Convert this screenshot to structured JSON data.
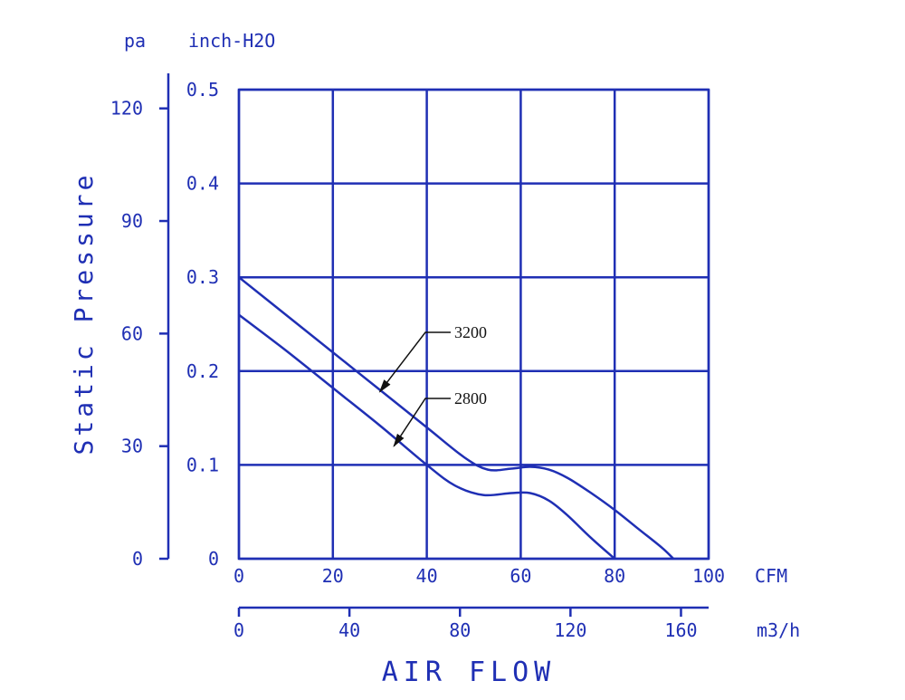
{
  "chart_data": {
    "type": "line",
    "color": "#1f2fb4",
    "x_label": "AIR FLOW",
    "y_label": "Static Pressure",
    "x_primary": {
      "unit": "CFM",
      "ticks": [
        "0",
        "20",
        "40",
        "60",
        "80",
        "100"
      ],
      "range": [
        0,
        100
      ]
    },
    "x_secondary": {
      "unit": "m3/h",
      "ticks": [
        "0",
        "40",
        "80",
        "120",
        "160"
      ],
      "range": [
        0,
        170
      ]
    },
    "y_primary": {
      "unit": "inch-H2O",
      "ticks": [
        "0",
        "0.1",
        "0.2",
        "0.3",
        "0.4",
        "0.5"
      ],
      "range": [
        0,
        0.5
      ]
    },
    "y_secondary": {
      "unit": "pa",
      "ticks": [
        "0",
        "30",
        "60",
        "90",
        "120"
      ],
      "range": [
        0,
        125
      ]
    },
    "grid": true,
    "series": [
      {
        "name": "3200",
        "x": [
          0,
          10,
          20,
          30,
          40,
          48,
          53,
          58,
          62,
          66,
          70,
          75,
          80,
          85,
          90,
          92.5
        ],
        "y": [
          0.3,
          0.26,
          0.22,
          0.18,
          0.14,
          0.108,
          0.095,
          0.096,
          0.098,
          0.095,
          0.086,
          0.07,
          0.052,
          0.032,
          0.012,
          0
        ]
      },
      {
        "name": "2800",
        "x": [
          0,
          10,
          20,
          30,
          40,
          46,
          52,
          58,
          62,
          66,
          70,
          75,
          80
        ],
        "y": [
          0.26,
          0.222,
          0.182,
          0.142,
          0.1,
          0.078,
          0.068,
          0.07,
          0.07,
          0.062,
          0.046,
          0.022,
          0
        ]
      }
    ]
  }
}
